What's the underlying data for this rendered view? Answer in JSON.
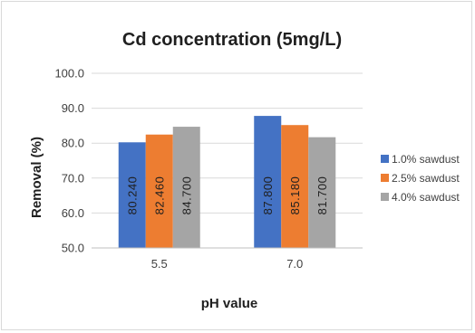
{
  "chart_data": {
    "type": "bar",
    "title": "Cd concentration (5mg/L)",
    "xlabel": "pH value",
    "ylabel": "Removal (%)",
    "categories": [
      "5.5",
      "7.0"
    ],
    "ylim": [
      50,
      100
    ],
    "yticks": [
      "50.0",
      "60.0",
      "70.0",
      "80.0",
      "90.0",
      "100.0"
    ],
    "grid": true,
    "legend_position": "right",
    "series": [
      {
        "name": "1.0% sawdust",
        "color": "#4472C4",
        "values": [
          80.24,
          87.8
        ],
        "labels": [
          "80.240",
          "87.800"
        ]
      },
      {
        "name": "2.5% sawdust",
        "color": "#ED7D31",
        "values": [
          82.46,
          85.18
        ],
        "labels": [
          "82.460",
          "85.180"
        ]
      },
      {
        "name": "4.0% sawdust",
        "color": "#A5A5A5",
        "values": [
          84.7,
          81.7
        ],
        "labels": [
          "84.700",
          "81.700"
        ]
      }
    ]
  }
}
